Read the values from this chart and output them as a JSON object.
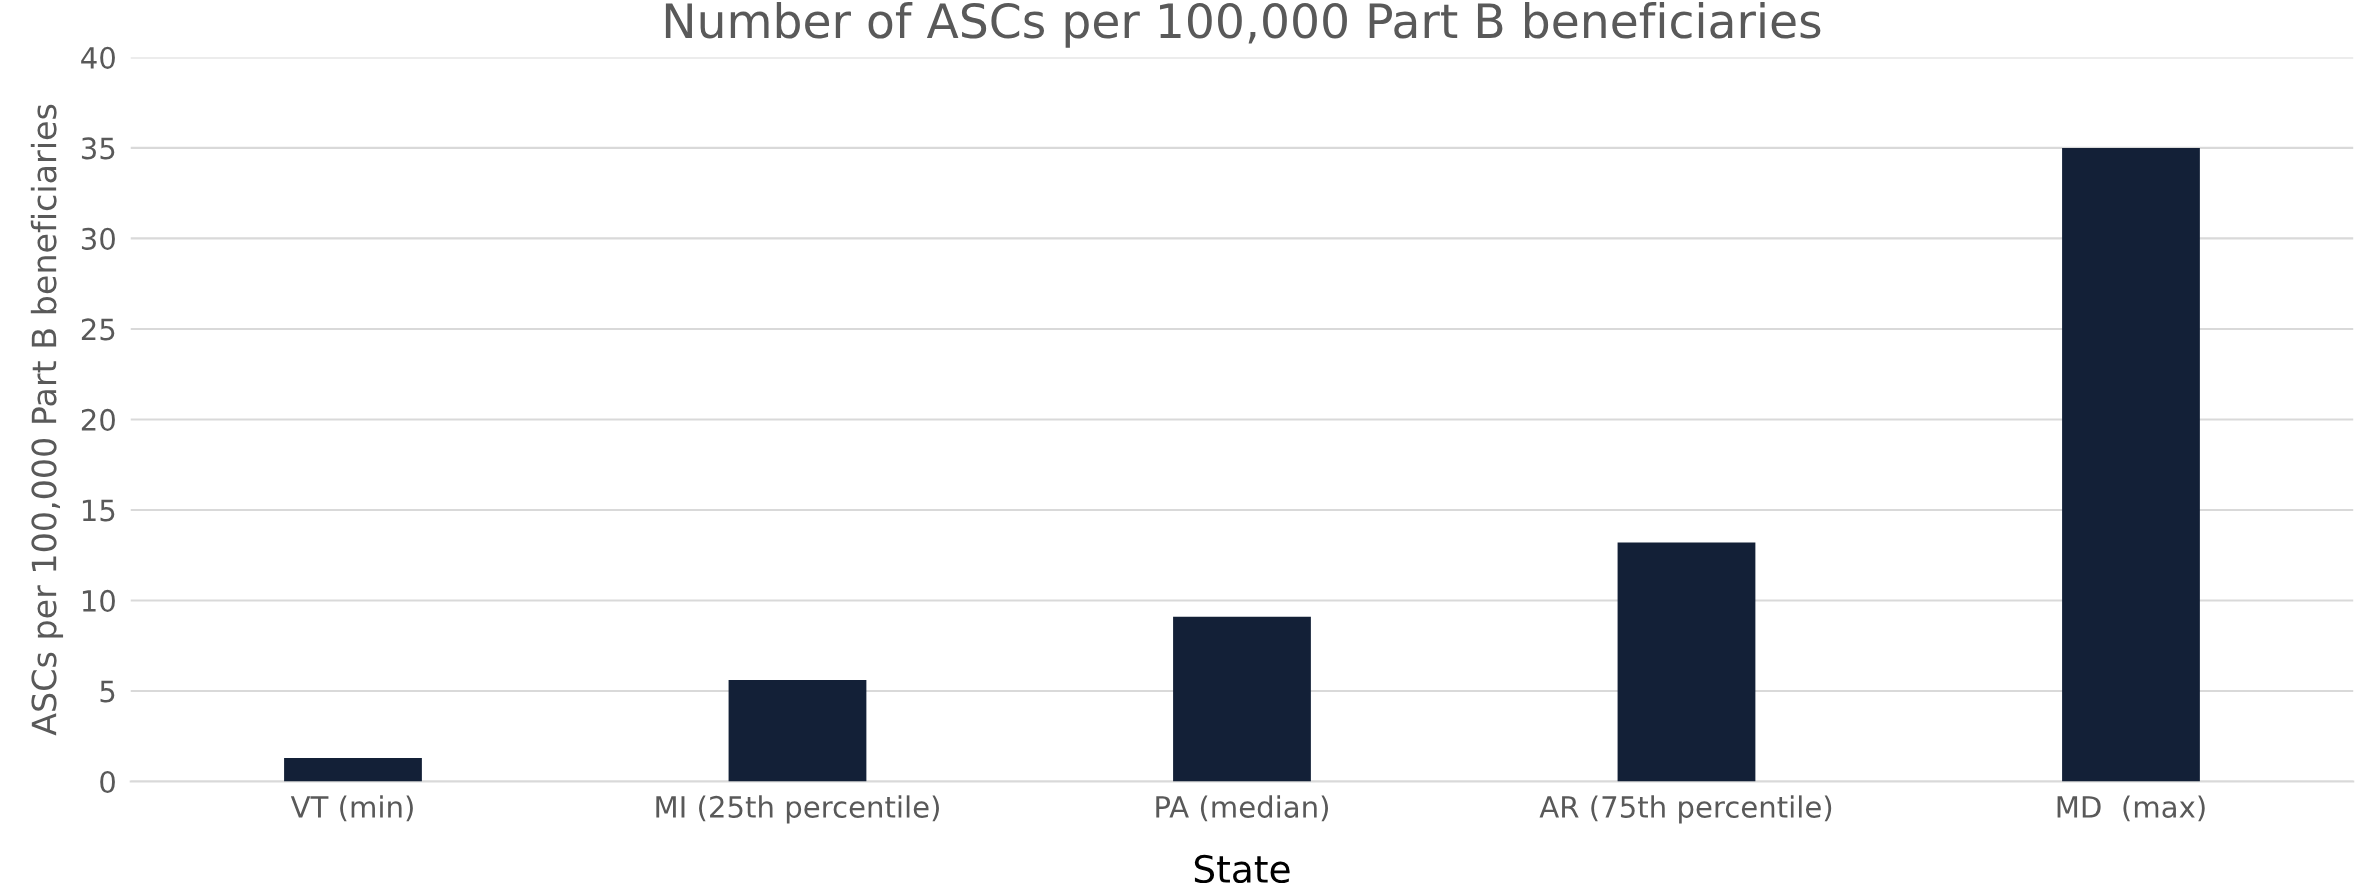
{
  "chart_data": {
    "type": "bar",
    "title": "Number of ASCs per 100,000 Part B beneficiaries",
    "xlabel": "State",
    "ylabel": "ASCs per 100,000 Part B beneficiaries",
    "categories": [
      "VT (min)",
      "MI (25th percentile)",
      "PA (median)",
      "AR (75th percentile)",
      "MD  (max)"
    ],
    "values": [
      1.3,
      5.6,
      9.1,
      13.2,
      35.0
    ],
    "color": "#132037",
    "ylim": [
      0,
      40
    ],
    "yticks": [
      0,
      5,
      10,
      15,
      20,
      25,
      30,
      35,
      40
    ],
    "grid": "y",
    "legend": false
  }
}
